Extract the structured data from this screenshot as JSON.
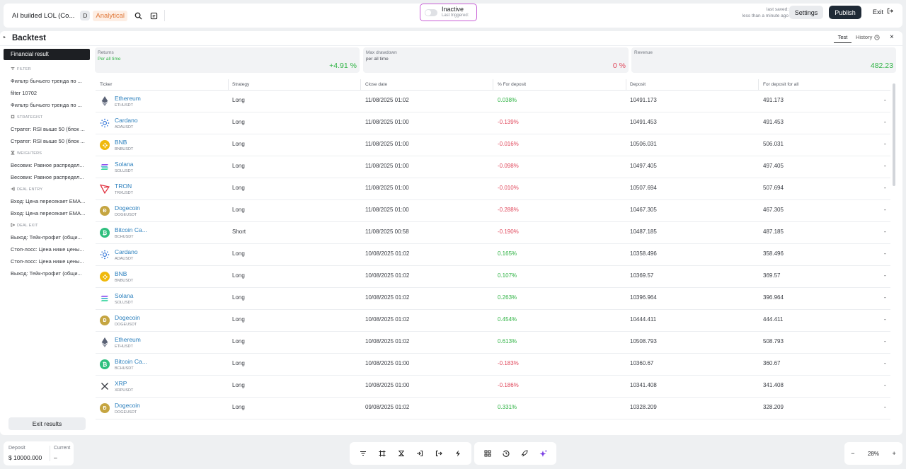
{
  "topbar": {
    "title": "AI builded LOL (Co...",
    "badge": "D",
    "mode": "Analytical",
    "status": "Inactive",
    "status_sub": "Last triggered:",
    "saved_label": "last saved:",
    "saved_value": "less than a minute ago",
    "settings": "Settings",
    "publish": "Publish",
    "exit": "Exit"
  },
  "panel": {
    "title": "Backtest",
    "tab_test": "Test",
    "tab_history": "History"
  },
  "sidebar": {
    "active": "Financial result",
    "sections": [
      {
        "label": "FILTER",
        "icon": "filter-icon",
        "items": [
          "Фильтр бычьего тренда по ...",
          "filter 10702",
          "Фильтр бычьего тренда по ..."
        ]
      },
      {
        "label": "STRATEGIST",
        "icon": "strategist-icon",
        "items": [
          "Стратег: RSI выше 50 (блок ...",
          "Стратег: RSI выше 50 (блок ..."
        ]
      },
      {
        "label": "WEIGHTERS",
        "icon": "weighters-icon",
        "items": [
          "Весовик: Равное распредел...",
          "Весовик: Равное распредел..."
        ]
      },
      {
        "label": "DEAL ENTRY",
        "icon": "deal-entry-icon",
        "items": [
          "Вход: Цена пересекает EMA...",
          "Вход: Цена пересекает EMA..."
        ]
      },
      {
        "label": "DEAL EXIT",
        "icon": "deal-exit-icon",
        "items": [
          "Выход: Тейк-профит (общи...",
          "Стоп-лосс: Цена ниже цены...",
          "Стоп-лосс: Цена ниже цены...",
          "Выход: Тейк-профит (общи..."
        ]
      }
    ],
    "exit_results": "Exit results"
  },
  "cards": [
    {
      "label": "Returns",
      "sub": "Per all time",
      "sub_color": "#2fb344",
      "value": "+4.91 %",
      "value_color": "#2fb344"
    },
    {
      "label": "Max drawdown",
      "sub": "per all time",
      "sub_color": "#4a4d55",
      "value": "0 %",
      "value_color": "#e0475b"
    },
    {
      "label": "Revenue",
      "sub": "",
      "sub_color": "#4a4d55",
      "value": "482.23",
      "value_color": "#2fb344"
    }
  ],
  "table": {
    "headers": [
      "Ticker",
      "Strategy",
      "Close date",
      "% For deposit",
      "Deposit",
      "For deposit for all"
    ],
    "rows": [
      {
        "name": "Ethereum",
        "sym": "ETHUSDT",
        "icon": "ethereum-icon",
        "strategy": "Long",
        "date": "11/08/2025 01:02",
        "pct": "0.038%",
        "deposit": "10491.173",
        "all": "491.173",
        "dash": "-"
      },
      {
        "name": "Cardano",
        "sym": "ADAUSDT",
        "icon": "cardano-icon",
        "strategy": "Long",
        "date": "11/08/2025 01:00",
        "pct": "-0.139%",
        "deposit": "10491.453",
        "all": "491.453",
        "dash": "-"
      },
      {
        "name": "BNB",
        "sym": "BNBUSDT",
        "icon": "bnb-icon",
        "strategy": "Long",
        "date": "11/08/2025 01:00",
        "pct": "-0.016%",
        "deposit": "10506.031",
        "all": "506.031",
        "dash": "-"
      },
      {
        "name": "Solana",
        "sym": "SOLUSDT",
        "icon": "solana-icon",
        "strategy": "Long",
        "date": "11/08/2025 01:00",
        "pct": "-0.098%",
        "deposit": "10497.405",
        "all": "497.405",
        "dash": "-"
      },
      {
        "name": "TRON",
        "sym": "TRXUSDT",
        "icon": "tron-icon",
        "strategy": "Long",
        "date": "11/08/2025 01:00",
        "pct": "-0.010%",
        "deposit": "10507.694",
        "all": "507.694",
        "dash": "-"
      },
      {
        "name": "Dogecoin",
        "sym": "DOGEUSDT",
        "icon": "dogecoin-icon",
        "strategy": "Long",
        "date": "11/08/2025 01:00",
        "pct": "-0.288%",
        "deposit": "10467.305",
        "all": "467.305",
        "dash": "-"
      },
      {
        "name": "Bitcoin Ca...",
        "sym": "BCHUSDT",
        "icon": "bitcoin-cash-icon",
        "strategy": "Short",
        "date": "11/08/2025 00:58",
        "pct": "-0.190%",
        "deposit": "10487.185",
        "all": "487.185",
        "dash": "-"
      },
      {
        "name": "Cardano",
        "sym": "ADAUSDT",
        "icon": "cardano-icon",
        "strategy": "Long",
        "date": "10/08/2025 01:02",
        "pct": "0.165%",
        "deposit": "10358.496",
        "all": "358.496",
        "dash": "-"
      },
      {
        "name": "BNB",
        "sym": "BNBUSDT",
        "icon": "bnb-icon",
        "strategy": "Long",
        "date": "10/08/2025 01:02",
        "pct": "0.107%",
        "deposit": "10369.57",
        "all": "369.57",
        "dash": "-"
      },
      {
        "name": "Solana",
        "sym": "SOLUSDT",
        "icon": "solana-icon",
        "strategy": "Long",
        "date": "10/08/2025 01:02",
        "pct": "0.263%",
        "deposit": "10396.964",
        "all": "396.964",
        "dash": "-"
      },
      {
        "name": "Dogecoin",
        "sym": "DOGEUSDT",
        "icon": "dogecoin-icon",
        "strategy": "Long",
        "date": "10/08/2025 01:02",
        "pct": "0.454%",
        "deposit": "10444.411",
        "all": "444.411",
        "dash": "-"
      },
      {
        "name": "Ethereum",
        "sym": "ETHUSDT",
        "icon": "ethereum-icon",
        "strategy": "Long",
        "date": "10/08/2025 01:02",
        "pct": "0.613%",
        "deposit": "10508.793",
        "all": "508.793",
        "dash": "-"
      },
      {
        "name": "Bitcoin Ca...",
        "sym": "BCHUSDT",
        "icon": "bitcoin-cash-icon",
        "strategy": "Long",
        "date": "10/08/2025 01:00",
        "pct": "-0.183%",
        "deposit": "10360.67",
        "all": "360.67",
        "dash": "-"
      },
      {
        "name": "XRP",
        "sym": "XRPUSDT",
        "icon": "xrp-icon",
        "strategy": "Long",
        "date": "10/08/2025 01:00",
        "pct": "-0.186%",
        "deposit": "10341.408",
        "all": "341.408",
        "dash": "-"
      },
      {
        "name": "Dogecoin",
        "sym": "DOGEUSDT",
        "icon": "dogecoin-icon",
        "strategy": "Long",
        "date": "09/08/2025 01:02",
        "pct": "0.331%",
        "deposit": "10328.209",
        "all": "328.209",
        "dash": "-"
      }
    ]
  },
  "bottom": {
    "deposit_label": "Deposit",
    "deposit_value": "$ 10000.000",
    "current_label": "Current",
    "current_value": "–",
    "zoom_minus": "−",
    "zoom_level": "28%",
    "zoom_plus": "+"
  },
  "colors": {
    "positive": "#2fb344",
    "negative": "#e0475b",
    "link": "#2a7fbd",
    "accent_orange": "#e07a3c",
    "status_border": "#c85fd6"
  }
}
